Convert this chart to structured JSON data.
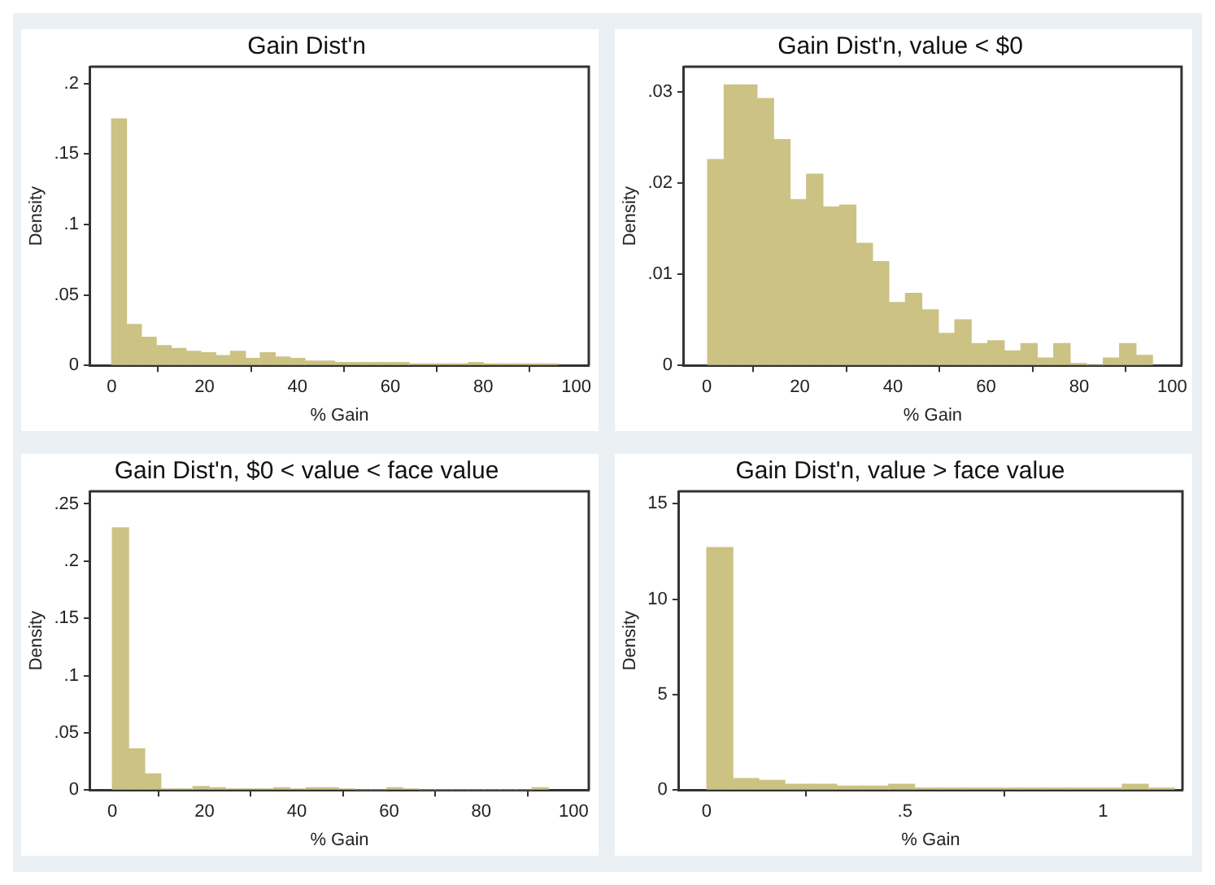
{
  "chart_data": [
    {
      "type": "histogram",
      "title": "Gain Dist'n",
      "xlabel": "% Gain",
      "ylabel": "Density",
      "color": "#cbc284",
      "bins": [
        0,
        3.2,
        6.4,
        9.6,
        12.8,
        16,
        19.2,
        22.4,
        25.6,
        28.8,
        32,
        35.2,
        38.4,
        41.6,
        44.8,
        48,
        51.2,
        54.4,
        57.6,
        60.8,
        64,
        67.2,
        70.4,
        73.6,
        76.8,
        80,
        83.2,
        86.4,
        89.6,
        92.8,
        96
      ],
      "values": [
        0.175,
        0.029,
        0.02,
        0.014,
        0.012,
        0.01,
        0.009,
        0.007,
        0.01,
        0.005,
        0.009,
        0.006,
        0.005,
        0.003,
        0.003,
        0.002,
        0.002,
        0.002,
        0.002,
        0.002,
        0.001,
        0.001,
        0.001,
        0.001,
        0.002,
        0.001,
        0.001,
        0.001,
        0.001,
        0.001
      ],
      "xlim": [
        -4.6,
        102.7
      ],
      "ylim": [
        0,
        0.212
      ],
      "xticks": [
        0,
        20,
        40,
        60,
        80,
        100
      ],
      "yticks": [
        0,
        {
          "value": 0.05,
          "label": ".05"
        },
        {
          "value": 0.1,
          "label": ".1"
        },
        {
          "value": 0.15,
          "label": ".15"
        },
        {
          "value": 0.2,
          "label": ".2"
        }
      ]
    },
    {
      "type": "histogram",
      "title": "Gain Dist'n, value < $0",
      "xlabel": "% Gain",
      "ylabel": "Density",
      "color": "#cbc284",
      "bins": [
        0.2,
        3.7,
        7.3,
        10.8,
        14.4,
        17.9,
        21.4,
        25.0,
        28.5,
        32.1,
        35.6,
        39.1,
        42.7,
        46.2,
        49.8,
        53.3,
        56.8,
        60.4,
        63.9,
        67.5,
        71.0,
        74.5,
        78.1,
        81.6,
        85.2,
        88.7,
        92.2,
        95.8
      ],
      "values": [
        0.0226,
        0.0308,
        0.0308,
        0.0293,
        0.0248,
        0.0182,
        0.021,
        0.0174,
        0.0176,
        0.0134,
        0.0114,
        0.0069,
        0.0079,
        0.0061,
        0.0035,
        0.005,
        0.0024,
        0.0027,
        0.0016,
        0.0024,
        0.0008,
        0.0024,
        0.0002,
        0,
        0.0008,
        0.0024,
        0.0011
      ],
      "xlim": [
        -4.9,
        102
      ],
      "ylim": [
        0,
        0.0328
      ],
      "xticks": [
        0,
        20,
        40,
        60,
        80,
        100
      ],
      "yticks": [
        0,
        {
          "value": 0.01,
          "label": ".01"
        },
        {
          "value": 0.02,
          "label": ".02"
        },
        {
          "value": 0.03,
          "label": ".03"
        }
      ]
    },
    {
      "type": "histogram",
      "title": "Gain Dist'n, $0 < value < face value",
      "xlabel": "% Gain",
      "ylabel": "Density",
      "color": "#cbc284",
      "bins": [
        0,
        3.5,
        7,
        10.5,
        14,
        17.5,
        21,
        24.5,
        28,
        31.5,
        35,
        38.5,
        42,
        45.5,
        49,
        52.5,
        56,
        59.5,
        63,
        66.5,
        70,
        73.5,
        77,
        80.5,
        84,
        87.5,
        91,
        94.5
      ],
      "values": [
        0.229,
        0.036,
        0.014,
        0.001,
        0.001,
        0.003,
        0.002,
        0.001,
        0.001,
        0.001,
        0.002,
        0.001,
        0.002,
        0.002,
        0.001,
        0,
        0,
        0.002,
        0.001,
        0,
        0,
        0,
        0,
        0,
        0,
        0,
        0.002
      ],
      "xlim": [
        -4.8,
        103.3
      ],
      "ylim": [
        0,
        0.261
      ],
      "xticks": [
        0,
        20,
        40,
        60,
        80,
        100
      ],
      "yticks": [
        0,
        {
          "value": 0.05,
          "label": ".05"
        },
        {
          "value": 0.1,
          "label": ".1"
        },
        {
          "value": 0.15,
          "label": ".15"
        },
        {
          "value": 0.2,
          "label": ".2"
        },
        {
          "value": 0.25,
          "label": ".25"
        }
      ]
    },
    {
      "type": "histogram",
      "title": "Gain Dist'n, value > face value",
      "xlabel": "% Gain",
      "ylabel": "Density",
      "color": "#cbc284",
      "bins": [
        0,
        0.066,
        0.131,
        0.197,
        0.262,
        0.328,
        0.393,
        0.459,
        0.524,
        0.59,
        0.655,
        0.721,
        0.786,
        0.852,
        0.917,
        0.983,
        1.048,
        1.114,
        1.179
      ],
      "values": [
        12.7,
        0.6,
        0.5,
        0.3,
        0.3,
        0.2,
        0.2,
        0.3,
        0.1,
        0.1,
        0.1,
        0.1,
        0.1,
        0.1,
        0.1,
        0.1,
        0.3,
        0.1
      ],
      "xlim": [
        -0.07,
        1.2
      ],
      "ylim": [
        0,
        15.65
      ],
      "xticks": [
        0,
        {
          "value": 0.5,
          "label": ".5"
        },
        1
      ],
      "yticks": [
        0,
        5,
        10,
        15
      ]
    }
  ]
}
